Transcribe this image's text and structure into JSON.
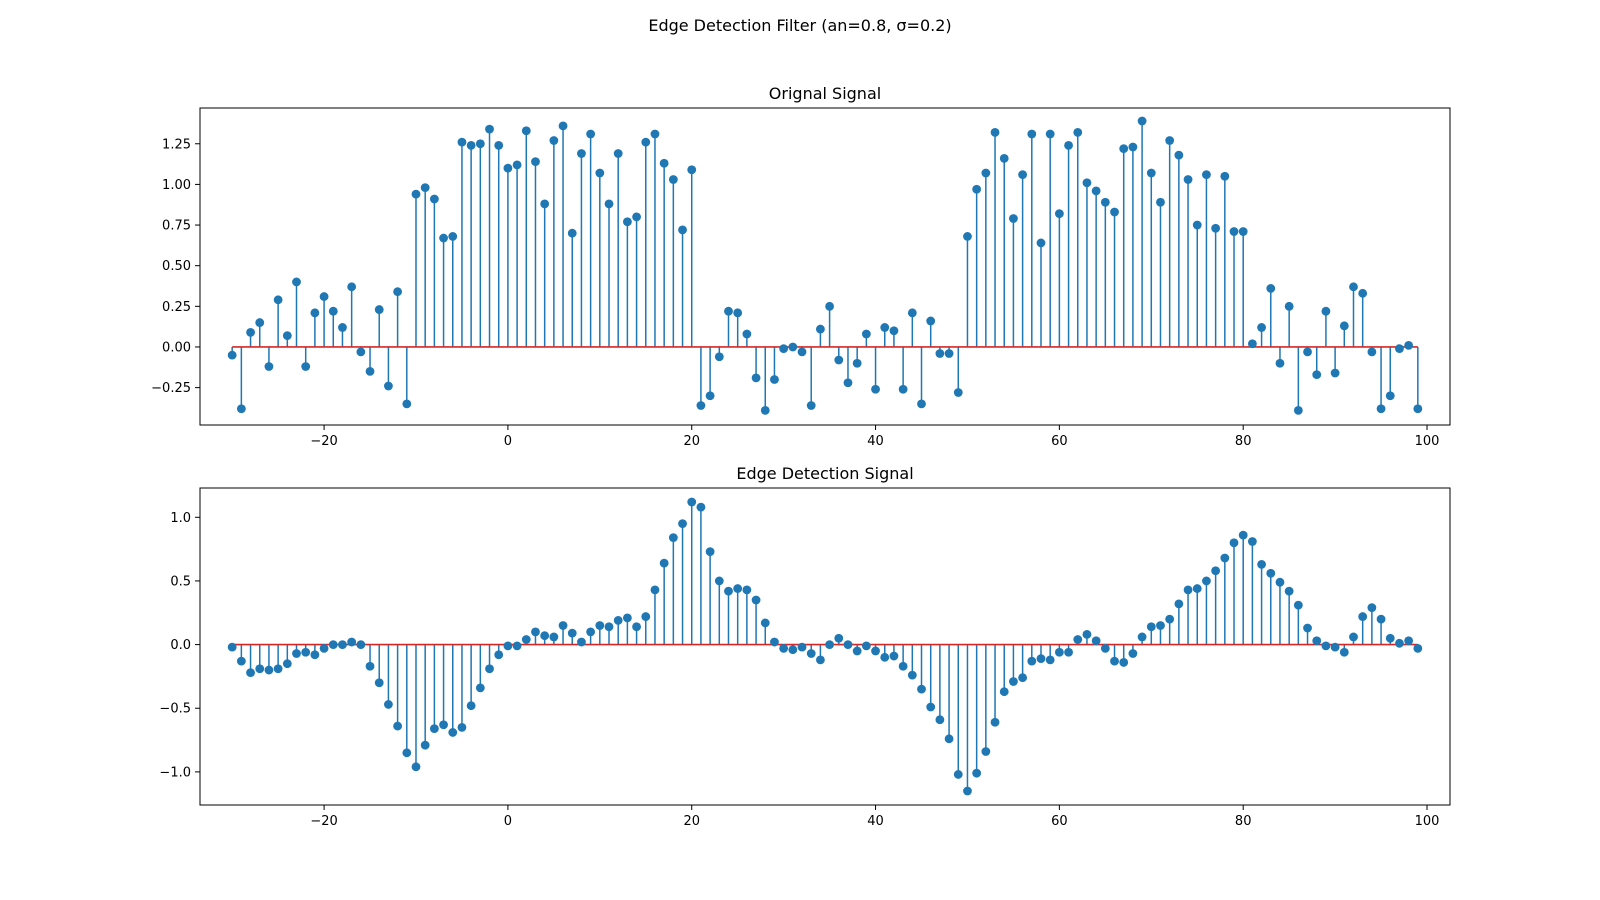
{
  "figure": {
    "title": "Edge Detection Filter (an=0.8, σ=0.2)"
  },
  "colors": {
    "stem": "#1f77b4",
    "marker": "#1f77b4",
    "baseline": "#d62728"
  },
  "chart_data": [
    {
      "type": "stem",
      "title": "Orignal Signal",
      "xlabel": "",
      "ylabel": "",
      "xlim": [
        -33.5,
        102.5
      ],
      "ylim": [
        -0.48,
        1.47
      ],
      "xticks": [
        -20,
        0,
        20,
        40,
        60,
        80,
        100
      ],
      "xtick_labels": [
        "−20",
        "0",
        "20",
        "40",
        "60",
        "80",
        "100"
      ],
      "yticks": [
        -0.25,
        0,
        0.25,
        0.5,
        0.75,
        1.0,
        1.25
      ],
      "ytick_labels": [
        "−0.25",
        "0.00",
        "0.25",
        "0.50",
        "0.75",
        "1.00",
        "1.25"
      ],
      "baseline": 0,
      "x": [
        -30,
        -29,
        -28,
        -27,
        -26,
        -25,
        -24,
        -23,
        -22,
        -21,
        -20,
        -19,
        -18,
        -17,
        -16,
        -15,
        -14,
        -13,
        -12,
        -11,
        -10,
        -9,
        -8,
        -7,
        -6,
        -5,
        -4,
        -3,
        -2,
        -1,
        0,
        1,
        2,
        3,
        4,
        5,
        6,
        7,
        8,
        9,
        10,
        11,
        12,
        13,
        14,
        15,
        16,
        17,
        18,
        19,
        20,
        21,
        22,
        23,
        24,
        25,
        26,
        27,
        28,
        29,
        30,
        31,
        32,
        33,
        34,
        35,
        36,
        37,
        38,
        39,
        40,
        41,
        42,
        43,
        44,
        45,
        46,
        47,
        48,
        49,
        50,
        51,
        52,
        53,
        54,
        55,
        56,
        57,
        58,
        59,
        60,
        61,
        62,
        63,
        64,
        65,
        66,
        67,
        68,
        69,
        70,
        71,
        72,
        73,
        74,
        75,
        76,
        77,
        78,
        79,
        80,
        81,
        82,
        83,
        84,
        85,
        86,
        87,
        88,
        89,
        90,
        91,
        92,
        93,
        94,
        95,
        96,
        97,
        98,
        99
      ],
      "y": [
        -0.05,
        -0.38,
        0.09,
        0.15,
        -0.12,
        0.29,
        0.07,
        0.4,
        -0.12,
        0.21,
        0.31,
        0.22,
        0.12,
        0.37,
        -0.03,
        -0.15,
        0.23,
        -0.24,
        0.34,
        -0.35,
        0.94,
        0.98,
        0.91,
        0.67,
        0.68,
        1.26,
        1.24,
        1.25,
        1.34,
        1.24,
        1.1,
        1.12,
        1.33,
        1.14,
        0.88,
        1.27,
        1.36,
        0.7,
        1.19,
        1.31,
        1.07,
        0.88,
        1.19,
        0.77,
        0.8,
        1.26,
        1.31,
        1.13,
        1.03,
        0.72,
        1.09,
        -0.36,
        -0.3,
        -0.06,
        0.22,
        0.21,
        0.08,
        -0.19,
        -0.39,
        -0.2,
        -0.01,
        0.0,
        -0.03,
        -0.36,
        0.11,
        0.25,
        -0.08,
        -0.22,
        -0.1,
        0.08,
        -0.26,
        0.12,
        0.1,
        -0.26,
        0.21,
        -0.35,
        0.16,
        -0.04,
        -0.04,
        -0.28,
        0.68,
        0.97,
        1.07,
        1.32,
        1.16,
        0.79,
        1.06,
        1.31,
        0.64,
        1.31,
        0.82,
        1.24,
        1.32,
        1.01,
        0.96,
        0.89,
        0.83,
        1.22,
        1.23,
        1.39,
        1.07,
        0.89,
        1.27,
        1.18,
        1.03,
        0.75,
        1.06,
        0.73,
        1.05,
        0.71,
        0.71,
        0.02,
        0.12,
        0.36,
        -0.1,
        0.25,
        -0.39,
        -0.03,
        -0.17,
        0.22,
        -0.16,
        0.13,
        0.37,
        0.33,
        -0.03,
        -0.38,
        -0.3,
        -0.01,
        0.01,
        -0.38
      ]
    },
    {
      "type": "stem",
      "title": "Edge Detection Signal",
      "xlabel": "",
      "ylabel": "",
      "xlim": [
        -33.5,
        102.5
      ],
      "ylim": [
        -1.26,
        1.23
      ],
      "xticks": [
        -20,
        0,
        20,
        40,
        60,
        80,
        100
      ],
      "xtick_labels": [
        "−20",
        "0",
        "20",
        "40",
        "60",
        "80",
        "100"
      ],
      "yticks": [
        -1.0,
        -0.5,
        0,
        0.5,
        1.0
      ],
      "ytick_labels": [
        "−1.0",
        "−0.5",
        "0.0",
        "0.5",
        "1.0"
      ],
      "baseline": 0,
      "x": [
        -30,
        -29,
        -28,
        -27,
        -26,
        -25,
        -24,
        -23,
        -22,
        -21,
        -20,
        -19,
        -18,
        -17,
        -16,
        -15,
        -14,
        -13,
        -12,
        -11,
        -10,
        -9,
        -8,
        -7,
        -6,
        -5,
        -4,
        -3,
        -2,
        -1,
        0,
        1,
        2,
        3,
        4,
        5,
        6,
        7,
        8,
        9,
        10,
        11,
        12,
        13,
        14,
        15,
        16,
        17,
        18,
        19,
        20,
        21,
        22,
        23,
        24,
        25,
        26,
        27,
        28,
        29,
        30,
        31,
        32,
        33,
        34,
        35,
        36,
        37,
        38,
        39,
        40,
        41,
        42,
        43,
        44,
        45,
        46,
        47,
        48,
        49,
        50,
        51,
        52,
        53,
        54,
        55,
        56,
        57,
        58,
        59,
        60,
        61,
        62,
        63,
        64,
        65,
        66,
        67,
        68,
        69,
        70,
        71,
        72,
        73,
        74,
        75,
        76,
        77,
        78,
        79,
        80,
        81,
        82,
        83,
        84,
        85,
        86,
        87,
        88,
        89,
        90,
        91,
        92,
        93,
        94,
        95,
        96,
        97,
        98,
        99
      ],
      "y": [
        -0.02,
        -0.13,
        -0.22,
        -0.19,
        -0.2,
        -0.19,
        -0.15,
        -0.07,
        -0.06,
        -0.08,
        -0.03,
        0.0,
        0.0,
        0.02,
        0.0,
        -0.17,
        -0.3,
        -0.47,
        -0.64,
        -0.85,
        -0.96,
        -0.79,
        -0.66,
        -0.63,
        -0.69,
        -0.65,
        -0.48,
        -0.34,
        -0.19,
        -0.08,
        -0.01,
        -0.01,
        0.04,
        0.1,
        0.07,
        0.06,
        0.15,
        0.09,
        0.02,
        0.1,
        0.15,
        0.14,
        0.19,
        0.21,
        0.14,
        0.22,
        0.43,
        0.64,
        0.84,
        0.95,
        1.12,
        1.08,
        0.73,
        0.5,
        0.42,
        0.44,
        0.43,
        0.35,
        0.17,
        0.02,
        -0.03,
        -0.04,
        -0.02,
        -0.07,
        -0.12,
        0.0,
        0.05,
        0.0,
        -0.05,
        -0.01,
        -0.05,
        -0.1,
        -0.09,
        -0.17,
        -0.24,
        -0.35,
        -0.49,
        -0.59,
        -0.74,
        -1.02,
        -1.15,
        -1.01,
        -0.84,
        -0.61,
        -0.37,
        -0.29,
        -0.26,
        -0.13,
        -0.11,
        -0.12,
        -0.06,
        -0.06,
        0.04,
        0.08,
        0.03,
        -0.03,
        -0.13,
        -0.14,
        -0.07,
        0.06,
        0.14,
        0.15,
        0.2,
        0.32,
        0.43,
        0.44,
        0.5,
        0.58,
        0.68,
        0.8,
        0.86,
        0.81,
        0.63,
        0.56,
        0.49,
        0.42,
        0.31,
        0.13,
        0.03,
        -0.01,
        -0.02,
        -0.06,
        0.06,
        0.22,
        0.29,
        0.2,
        0.05,
        0.01,
        0.03,
        -0.03
      ]
    }
  ]
}
